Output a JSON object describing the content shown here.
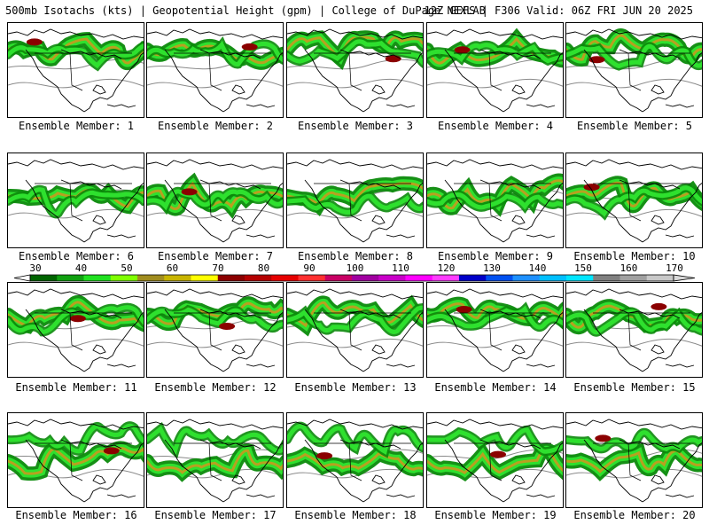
{
  "header": {
    "left": "500mb Isotachs (kts) | Geopotential Height (gpm) | College of DuPage NEXLAB",
    "right": "12Z GEFS | F306 Valid: 06Z FRI JUN 20 2025"
  },
  "caption_prefix": "Ensemble Member: ",
  "members": [
    "1",
    "2",
    "3",
    "4",
    "5",
    "6",
    "7",
    "8",
    "9",
    "10",
    "11",
    "12",
    "13",
    "14",
    "15",
    "16",
    "17",
    "18",
    "19",
    "20"
  ],
  "colorbar": {
    "labels": [
      "30",
      "40",
      "50",
      "60",
      "70",
      "80",
      "90",
      "100",
      "110",
      "120",
      "130",
      "140",
      "150",
      "160",
      "170"
    ],
    "colors": [
      "#006400",
      "#10a010",
      "#20e020",
      "#7fff00",
      "#a08c1e",
      "#c8b400",
      "#ffff00",
      "#8b0000",
      "#b40000",
      "#e60000",
      "#ff3030",
      "#c80064",
      "#a000a0",
      "#c800c8",
      "#ff00ff",
      "#ff3cff",
      "#0000c8",
      "#0050f0",
      "#1e90ff",
      "#00bfff",
      "#00e5ff",
      "#808080",
      "#a0a0a0",
      "#c8c8c8"
    ]
  }
}
